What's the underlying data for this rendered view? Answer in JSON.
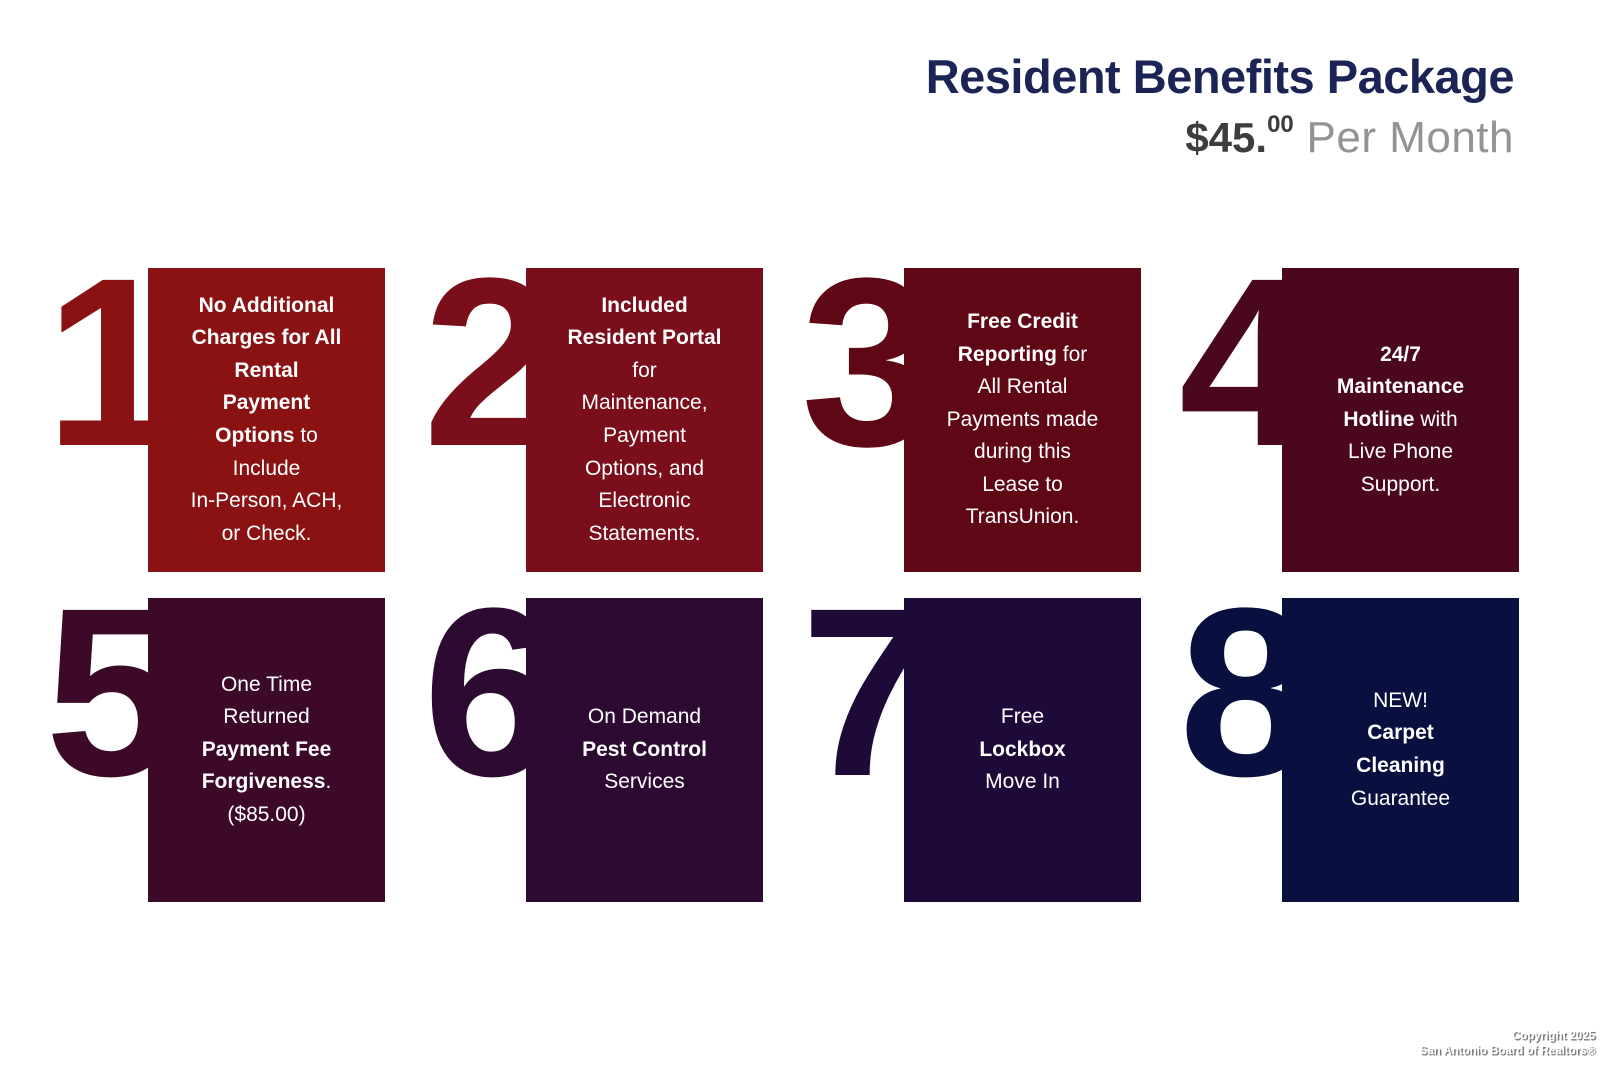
{
  "header": {
    "title": "Resident Benefits Package",
    "price_main": "$45.",
    "price_cents": "00",
    "price_suffix": " Per Month"
  },
  "colors": {
    "title": "#1b2454",
    "price": "#3d3d3d",
    "price_suffix": "#919396"
  },
  "cards": [
    {
      "number": "1",
      "color": "#8a1212",
      "segments": [
        {
          "t": "No Additional\nCharges for All\nRental\nPayment\nOptions",
          "b": true
        },
        {
          "t": " to\nInclude\nIn-Person, ACH,\nor Check.",
          "b": false
        }
      ]
    },
    {
      "number": "2",
      "color": "#7a0e1b",
      "segments": [
        {
          "t": "Included\nResident Portal",
          "b": true
        },
        {
          "t": "\nfor\nMaintenance,\nPayment\nOptions, and\nElectronic\nStatements.",
          "b": false
        }
      ]
    },
    {
      "number": "3",
      "color": "#5f0715",
      "segments": [
        {
          "t": "Free Credit\nReporting",
          "b": true
        },
        {
          "t": " for\nAll Rental\nPayments made\nduring this\nLease to\nTransUnion.",
          "b": false
        }
      ]
    },
    {
      "number": "4",
      "color": "#4c0720",
      "segments": [
        {
          "t": "24/7\nMaintenance\nHotline",
          "b": true
        },
        {
          "t": " with\nLive Phone\nSupport.",
          "b": false
        }
      ]
    },
    {
      "number": "5",
      "color": "#3c0929",
      "segments": [
        {
          "t": "One Time\nReturned\n",
          "b": false
        },
        {
          "t": "Payment Fee\nForgiveness",
          "b": true
        },
        {
          "t": ".\n($85.00)",
          "b": false
        }
      ]
    },
    {
      "number": "6",
      "color": "#2d0a31",
      "segments": [
        {
          "t": "On Demand\n",
          "b": false
        },
        {
          "t": "Pest Control",
          "b": true
        },
        {
          "t": "\nServices",
          "b": false
        }
      ]
    },
    {
      "number": "7",
      "color": "#1e0a38",
      "segments": [
        {
          "t": "Free\n",
          "b": false
        },
        {
          "t": "Lockbox",
          "b": true
        },
        {
          "t": "\nMove In",
          "b": false
        }
      ]
    },
    {
      "number": "8",
      "color": "#09103f",
      "segments": [
        {
          "t": "NEW!\n",
          "b": false
        },
        {
          "t": "Carpet\nCleaning",
          "b": true
        },
        {
          "t": "\nGuarantee",
          "b": false
        }
      ]
    }
  ],
  "footer": {
    "line1": "Copyright 2025",
    "line2": "San Antonio Board of Realtors®"
  }
}
